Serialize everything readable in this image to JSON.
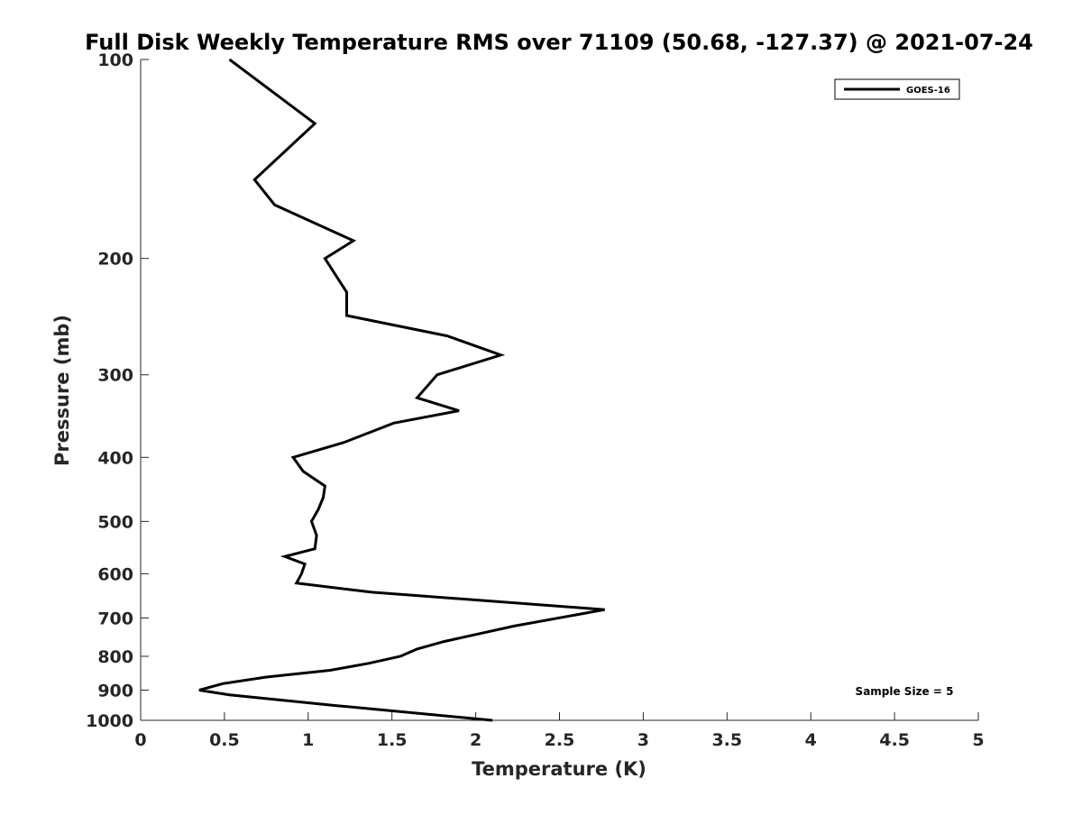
{
  "chart_data": {
    "type": "line",
    "title": "Full Disk Weekly Temperature RMS over 71109 (50.68, -127.37) @ 2021-07-24",
    "xlabel": "Temperature (K)",
    "ylabel": "Pressure (mb)",
    "xlim": [
      0,
      5
    ],
    "ylim": [
      100,
      1000
    ],
    "y_scale": "log",
    "y_reversed": true,
    "grid": false,
    "legend_position": "top-right",
    "x_ticks": [
      "0",
      "0.5",
      "1",
      "1.5",
      "2",
      "2.5",
      "3",
      "3.5",
      "4",
      "4.5",
      "5"
    ],
    "y_ticks": [
      "100",
      "200",
      "300",
      "400",
      "500",
      "600",
      "700",
      "800",
      "900",
      "1000"
    ],
    "series": [
      {
        "name": "GOES-16",
        "color": "#000000",
        "x": [
          0.53,
          1.04,
          0.68,
          0.8,
          1.27,
          1.1,
          1.23,
          1.23,
          1.83,
          2.15,
          1.77,
          1.65,
          1.9,
          1.51,
          1.21,
          0.91,
          0.97,
          1.1,
          1.09,
          1.06,
          1.02,
          1.05,
          1.04,
          0.86,
          0.98,
          0.96,
          0.93,
          1.38,
          2.77,
          2.23,
          1.81,
          1.65,
          1.55,
          1.36,
          1.13,
          0.75,
          0.49,
          0.35,
          0.53,
          1.17,
          2.1
        ],
        "y": [
          100,
          125,
          152,
          166,
          188,
          200,
          225,
          244,
          262,
          280,
          300,
          325,
          340,
          355,
          380,
          400,
          420,
          442,
          460,
          480,
          500,
          525,
          550,
          565,
          580,
          600,
          620,
          640,
          680,
          720,
          760,
          780,
          800,
          820,
          840,
          860,
          880,
          900,
          915,
          950,
          1000
        ]
      }
    ],
    "annotations": [
      "Sample Size = 5"
    ]
  }
}
